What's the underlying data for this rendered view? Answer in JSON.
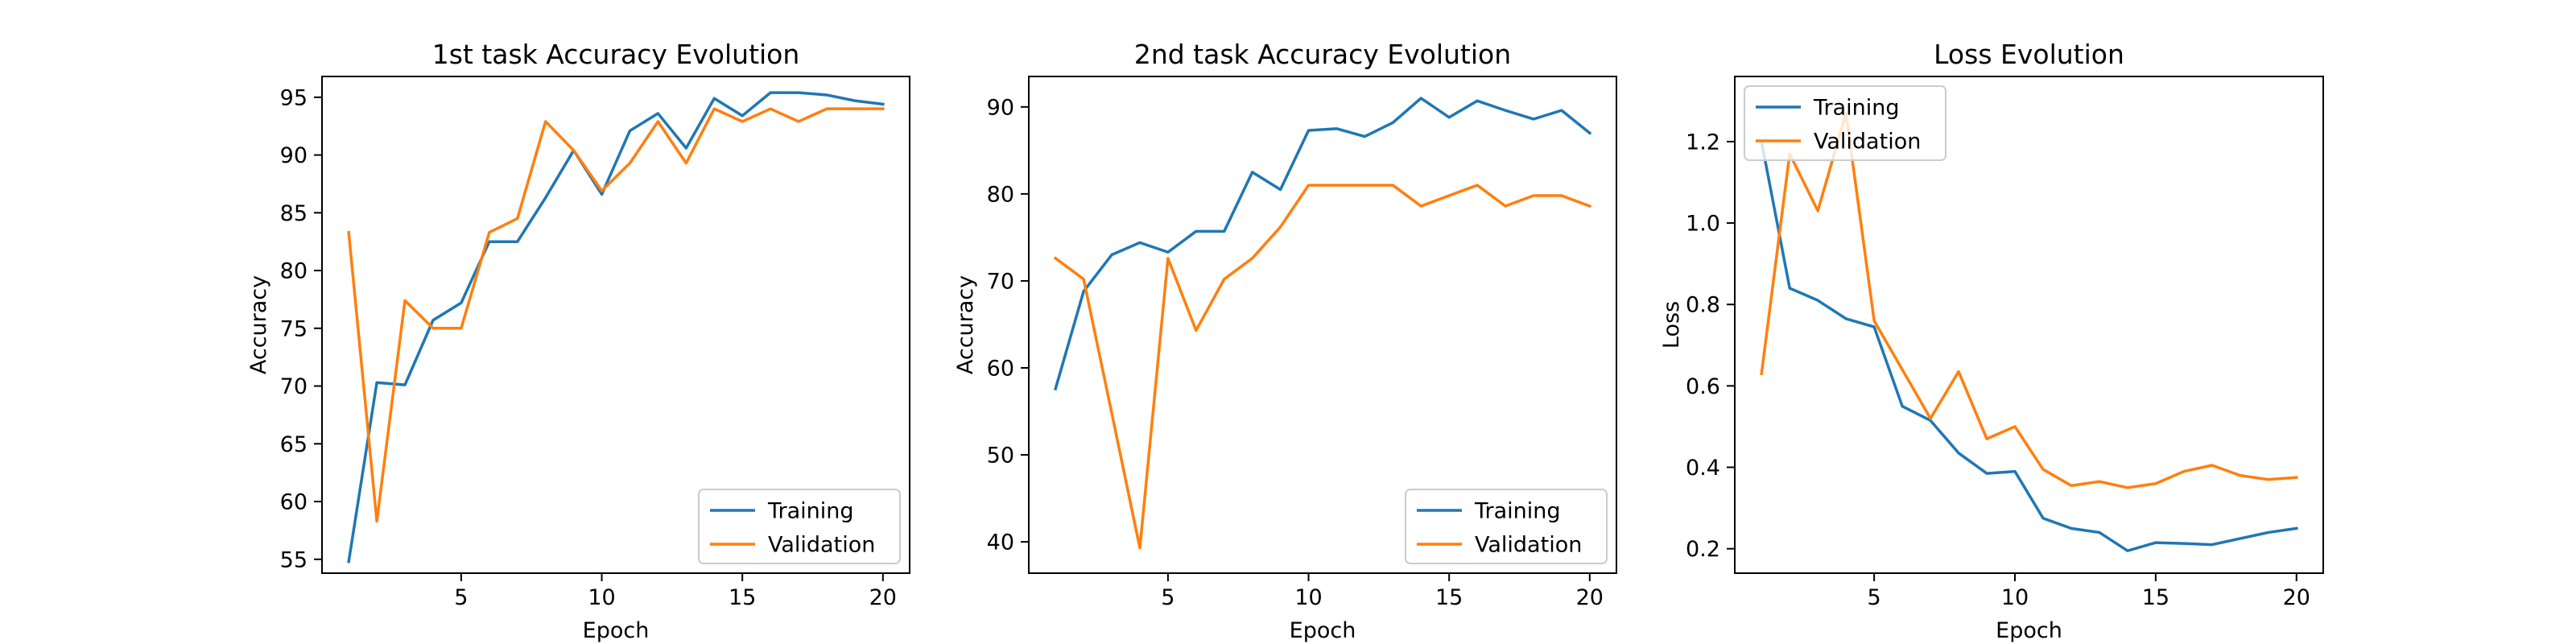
{
  "chart_data": [
    {
      "type": "line",
      "title": "1st task Accuracy Evolution",
      "xlabel": "Epoch",
      "ylabel": "Accuracy",
      "xlim": [
        0.05,
        20.95
      ],
      "ylim": [
        53.8,
        96.8
      ],
      "xticks": [
        5,
        10,
        15,
        20
      ],
      "yticks": [
        55,
        60,
        65,
        70,
        75,
        80,
        85,
        90,
        95
      ],
      "grid": false,
      "legend": "lower-right",
      "x": [
        1,
        2,
        3,
        4,
        5,
        6,
        7,
        8,
        9,
        10,
        11,
        12,
        13,
        14,
        15,
        16,
        17,
        18,
        19,
        20
      ],
      "series": [
        {
          "name": "Training",
          "color": "#1f77b4",
          "values": [
            54.8,
            70.3,
            70.1,
            75.7,
            77.2,
            82.5,
            82.5,
            86.3,
            90.4,
            86.6,
            92.1,
            93.6,
            90.6,
            94.9,
            93.4,
            95.4,
            95.4,
            95.2,
            94.7,
            94.4
          ]
        },
        {
          "name": "Validation",
          "color": "#ff7f0e",
          "values": [
            83.3,
            58.3,
            77.4,
            75.0,
            75.0,
            83.3,
            84.5,
            92.9,
            90.4,
            86.9,
            89.3,
            92.9,
            89.3,
            94.0,
            92.9,
            94.0,
            92.9,
            94.0,
            94.0,
            94.0
          ]
        }
      ]
    },
    {
      "type": "line",
      "title": "2nd task Accuracy Evolution",
      "xlabel": "Epoch",
      "ylabel": "Accuracy",
      "xlim": [
        0.05,
        20.95
      ],
      "ylim": [
        36.4,
        93.5
      ],
      "xticks": [
        5,
        10,
        15,
        20
      ],
      "yticks": [
        40,
        50,
        60,
        70,
        80,
        90
      ],
      "grid": false,
      "legend": "lower-right",
      "x": [
        1,
        2,
        3,
        4,
        5,
        6,
        7,
        8,
        9,
        10,
        11,
        12,
        13,
        14,
        15,
        16,
        17,
        18,
        19,
        20
      ],
      "series": [
        {
          "name": "Training",
          "color": "#1f77b4",
          "values": [
            57.6,
            68.8,
            73.0,
            74.4,
            73.3,
            75.7,
            75.7,
            82.5,
            80.5,
            87.3,
            87.5,
            86.6,
            88.2,
            91.0,
            88.8,
            90.7,
            89.6,
            88.6,
            89.6,
            87.0
          ]
        },
        {
          "name": "Validation",
          "color": "#ff7f0e",
          "values": [
            72.6,
            70.2,
            54.8,
            39.3,
            72.6,
            64.3,
            70.2,
            72.6,
            76.2,
            81.0,
            81.0,
            81.0,
            81.0,
            78.6,
            79.8,
            81.0,
            78.6,
            79.8,
            79.8,
            78.6
          ]
        }
      ]
    },
    {
      "type": "line",
      "title": "Loss Evolution",
      "xlabel": "Epoch",
      "ylabel": "Loss",
      "xlim": [
        0.05,
        20.95
      ],
      "ylim": [
        0.14,
        1.36
      ],
      "xticks": [
        5,
        10,
        15,
        20
      ],
      "yticks": [
        0.2,
        0.4,
        0.6,
        0.8,
        1.0,
        1.2
      ],
      "ytick_labels": [
        "0.2",
        "0.4",
        "0.6",
        "0.8",
        "1.0",
        "1.2"
      ],
      "grid": false,
      "legend": "upper-left",
      "x": [
        1,
        2,
        3,
        4,
        5,
        6,
        7,
        8,
        9,
        10,
        11,
        12,
        13,
        14,
        15,
        16,
        17,
        18,
        19,
        20
      ],
      "series": [
        {
          "name": "Training",
          "color": "#1f77b4",
          "values": [
            1.2,
            0.84,
            0.81,
            0.765,
            0.745,
            0.55,
            0.515,
            0.435,
            0.385,
            0.39,
            0.275,
            0.25,
            0.24,
            0.195,
            0.215,
            0.213,
            0.21,
            0.225,
            0.24,
            0.25
          ]
        },
        {
          "name": "Validation",
          "color": "#ff7f0e",
          "values": [
            0.63,
            1.17,
            1.03,
            1.27,
            0.76,
            0.64,
            0.52,
            0.635,
            0.47,
            0.5,
            0.395,
            0.355,
            0.365,
            0.35,
            0.36,
            0.39,
            0.405,
            0.38,
            0.37,
            0.375
          ]
        }
      ]
    }
  ]
}
